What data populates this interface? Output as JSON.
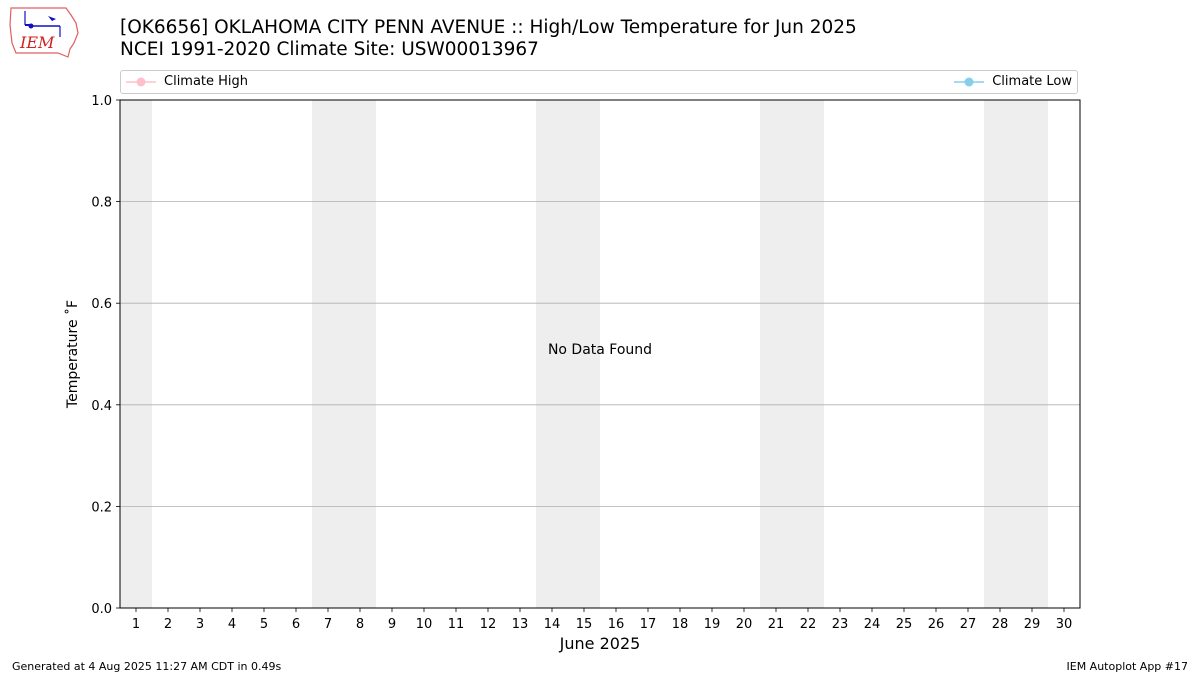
{
  "header": {
    "title_line1": "[OK6656] OKLAHOMA CITY PENN AVENUE :: High/Low Temperature for Jun 2025",
    "title_line2": "NCEI 1991-2020 Climate Site: USW00013967"
  },
  "logo": {
    "text": "IEM"
  },
  "footer": {
    "generated": "Generated at 4 Aug 2025 11:27 AM CDT in 0.49s",
    "app": "IEM Autoplot App #17"
  },
  "chart_data": {
    "type": "line",
    "title": "[OK6656] OKLAHOMA CITY PENN AVENUE :: High/Low Temperature for Jun 2025",
    "subtitle": "NCEI 1991-2020 Climate Site: USW00013967",
    "xlabel": "June 2025",
    "ylabel": "Temperature ˚F",
    "x_ticks": [
      1,
      2,
      3,
      4,
      5,
      6,
      7,
      8,
      9,
      10,
      11,
      12,
      13,
      14,
      15,
      16,
      17,
      18,
      19,
      20,
      21,
      22,
      23,
      24,
      25,
      26,
      27,
      28,
      29,
      30
    ],
    "xlim": [
      0.5,
      30.5
    ],
    "ylim": [
      0.0,
      1.0
    ],
    "y_ticks": [
      "0.0",
      "0.2",
      "0.4",
      "0.6",
      "0.8",
      "1.0"
    ],
    "weekend_shading": [
      [
        0.5,
        1.5
      ],
      [
        6.5,
        8.5
      ],
      [
        13.5,
        15.5
      ],
      [
        20.5,
        22.5
      ],
      [
        27.5,
        29.5
      ]
    ],
    "grid": "horizontal",
    "annotation": "No Data Found",
    "legend": {
      "placement": "top",
      "entries": [
        {
          "name": "Climate High",
          "color": "#ffc0cb"
        },
        {
          "name": "Climate Low",
          "color": "#87ceeb"
        }
      ]
    },
    "series": []
  }
}
